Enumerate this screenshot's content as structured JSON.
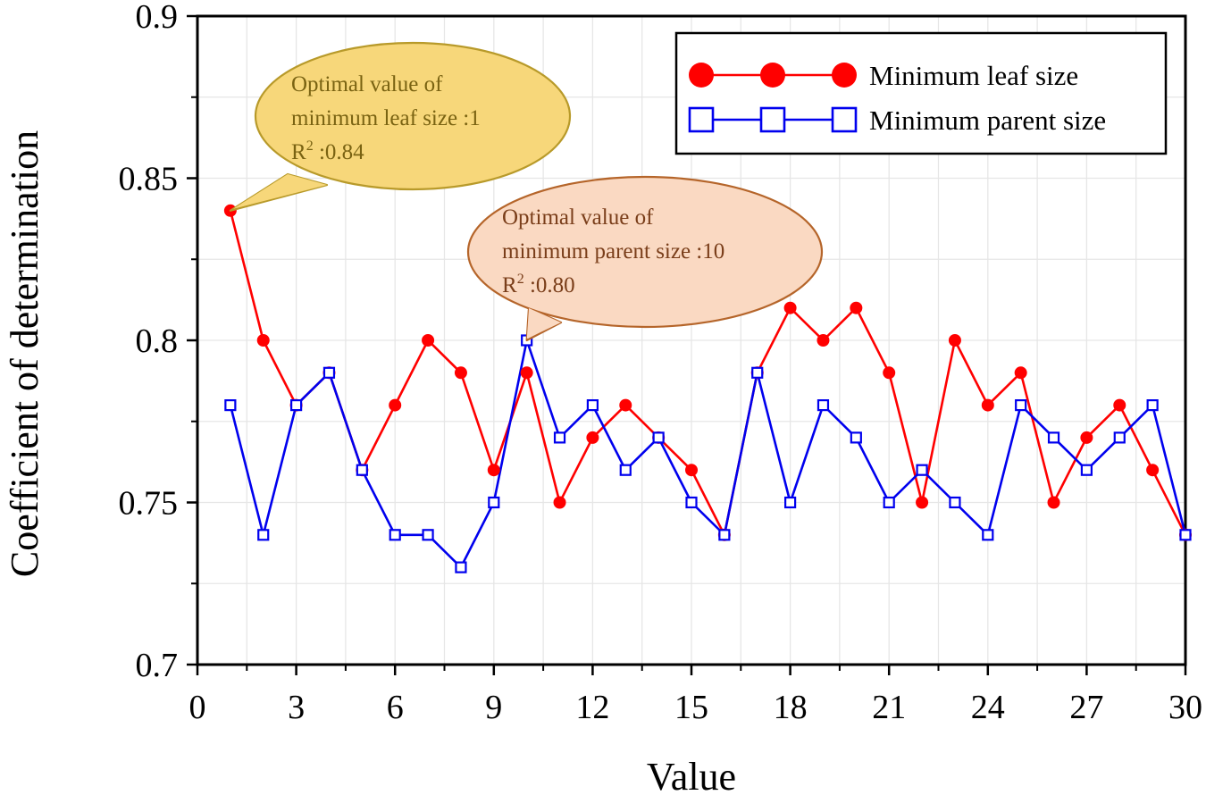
{
  "chart_data": {
    "type": "line",
    "title": "",
    "xlabel": "Value",
    "ylabel": "Coefficient of determination",
    "xlim": [
      0,
      30
    ],
    "ylim": [
      0.7,
      0.9
    ],
    "xticks": [
      0,
      3,
      6,
      9,
      12,
      15,
      18,
      21,
      24,
      27,
      30
    ],
    "xtick_labels": [
      "0",
      "3",
      "6",
      "9",
      "12",
      "15",
      "18",
      "21",
      "24",
      "27",
      "30"
    ],
    "yticks": [
      0.7,
      0.75,
      0.8,
      0.85,
      0.9
    ],
    "ytick_labels": [
      "0.7",
      "0.75",
      "0.8",
      "0.85",
      "0.9"
    ],
    "grid": true,
    "legend_position": "top-right",
    "x": [
      1,
      2,
      3,
      4,
      5,
      6,
      7,
      8,
      9,
      10,
      11,
      12,
      13,
      14,
      15,
      16,
      17,
      18,
      19,
      20,
      21,
      22,
      23,
      24,
      25,
      26,
      27,
      28,
      29,
      30
    ],
    "series": [
      {
        "name": "Minimum leaf size",
        "color": "#ff0000",
        "marker": "filled-circle",
        "values": [
          0.84,
          0.8,
          0.78,
          0.79,
          0.76,
          0.78,
          0.8,
          0.79,
          0.76,
          0.79,
          0.75,
          0.77,
          0.78,
          0.77,
          0.76,
          0.74,
          0.79,
          0.81,
          0.8,
          0.81,
          0.79,
          0.75,
          0.8,
          0.78,
          0.79,
          0.75,
          0.77,
          0.78,
          0.76,
          0.74
        ]
      },
      {
        "name": "Minimum parent size",
        "color": "#0000ee",
        "marker": "open-square",
        "values": [
          0.78,
          0.74,
          0.78,
          0.79,
          0.76,
          0.74,
          0.74,
          0.73,
          0.75,
          0.8,
          0.77,
          0.78,
          0.76,
          0.77,
          0.75,
          0.74,
          0.79,
          0.75,
          0.78,
          0.77,
          0.75,
          0.76,
          0.75,
          0.74,
          0.78,
          0.77,
          0.76,
          0.77,
          0.78,
          0.74
        ]
      }
    ],
    "annotations": [
      {
        "series": "Minimum leaf size",
        "point_x": 1,
        "point_y": 0.84,
        "lines": [
          "Optimal value of",
          "minimum leaf size :1"
        ],
        "r2_base": "R",
        "r2_sup": "2",
        "r2_value": " :0.84",
        "fill": "#f7d77a",
        "stroke": "#b89a2a",
        "text_color": "#7a6312"
      },
      {
        "series": "Minimum parent size",
        "point_x": 10,
        "point_y": 0.8,
        "lines": [
          "Optimal value of",
          "minimum parent size :10"
        ],
        "r2_base": "R",
        "r2_sup": "2",
        "r2_value": " :0.80",
        "fill": "#fad9c2",
        "stroke": "#b5652a",
        "text_color": "#7a3e1a"
      }
    ]
  }
}
